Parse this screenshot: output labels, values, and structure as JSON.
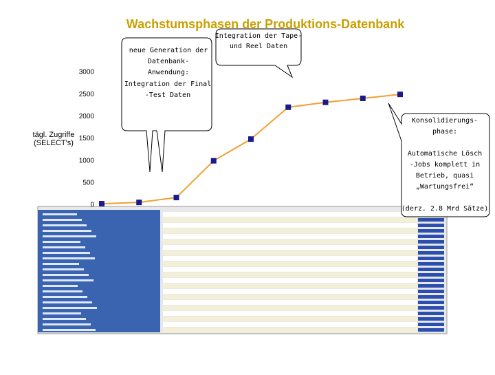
{
  "chart_data": {
    "type": "line",
    "title": "Wachstumsphasen der Produktions-Datenbank",
    "y_label": [
      "tägl. Zugriffe",
      "(SELECT's)"
    ],
    "categories": [
      null,
      null,
      null,
      null,
      null,
      null,
      null,
      null,
      null
    ],
    "values": [
      30,
      60,
      170,
      1000,
      1490,
      2210,
      2320,
      2410,
      2500
    ],
    "line_color": "#f0a030",
    "marker_color": "#1a1a8c",
    "ylim": [
      0,
      3000
    ],
    "yticks": [
      0,
      500,
      1000,
      1500,
      2000,
      2500,
      3000
    ]
  },
  "annotations": {
    "new_generation": [
      "neue Generation der",
      "Datenbank-",
      "Anwendung:"
    ],
    "final_test": [
      "Integration der Final",
      "-Test Daten"
    ],
    "tape_reel": [
      "Integration der Tape-",
      "und Reel Daten"
    ],
    "consolidation": [
      "Konsolidierungs-",
      "phase:",
      "",
      "Automatische Lösch",
      "-Jobs komplett in",
      "Betrieb, quasi",
      "„Wartungsfrei“",
      "",
      "(derz. 2.8 Mrd Sätze)"
    ]
  }
}
